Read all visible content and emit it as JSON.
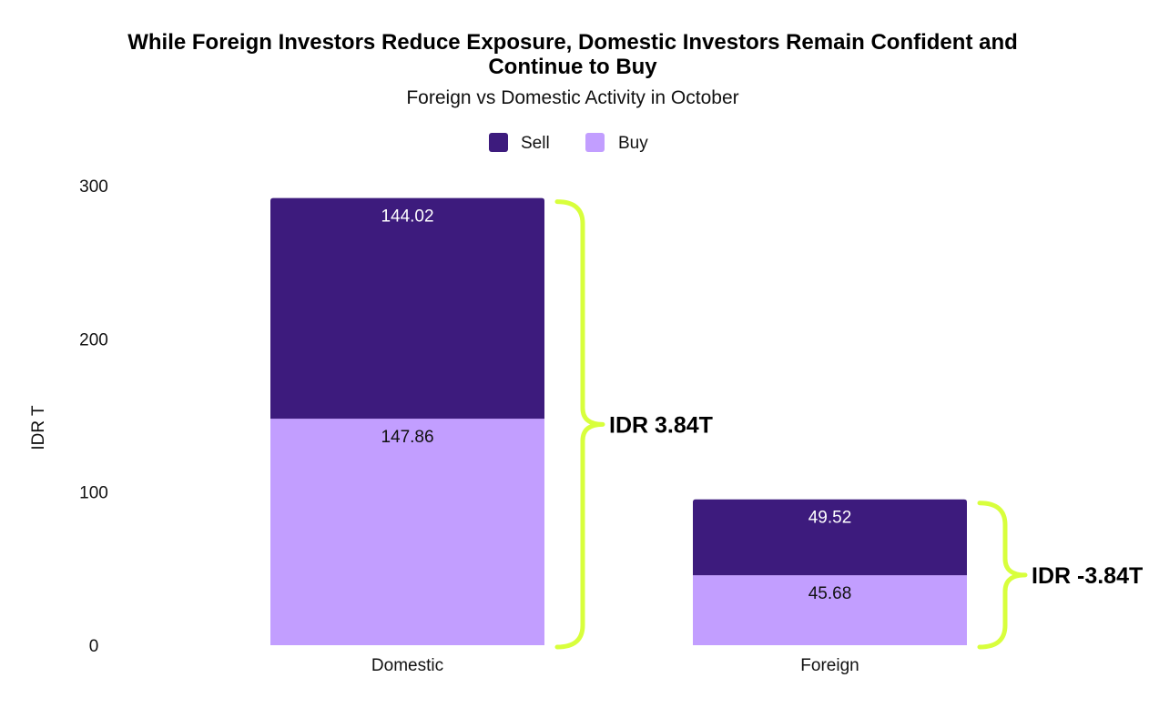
{
  "chart_data": {
    "type": "bar",
    "stacked": true,
    "title": "While Foreign Investors Reduce Exposure, Domestic Investors Remain Confident and Continue to Buy",
    "title_lines": [
      "While Foreign Investors Reduce Exposure, Domestic Investors Remain Confident and",
      "Continue to Buy"
    ],
    "subtitle": "Foreign vs Domestic Activity in October",
    "ylabel": "IDR T",
    "xlabel": "",
    "ylim": [
      0,
      300
    ],
    "yticks": [
      0,
      100,
      200,
      300
    ],
    "categories": [
      "Domestic",
      "Foreign"
    ],
    "series": [
      {
        "name": "Buy",
        "values": [
          147.86,
          45.68
        ],
        "labels": [
          "147.86",
          "45.68"
        ],
        "color": "#c29eff",
        "label_color": "#111111"
      },
      {
        "name": "Sell",
        "values": [
          144.02,
          49.52
        ],
        "labels": [
          "144.02",
          "49.52"
        ],
        "color": "#3d1b7d",
        "label_color": "#ffffff"
      }
    ],
    "legend": {
      "position": "top-center",
      "order": [
        "Sell",
        "Buy"
      ]
    },
    "grid": false,
    "annotations": [
      {
        "category": "Domestic",
        "text": "IDR 3.84T"
      },
      {
        "category": "Foreign",
        "text": "IDR -3.84T"
      }
    ],
    "bracket_color": "#d8ff3c"
  }
}
